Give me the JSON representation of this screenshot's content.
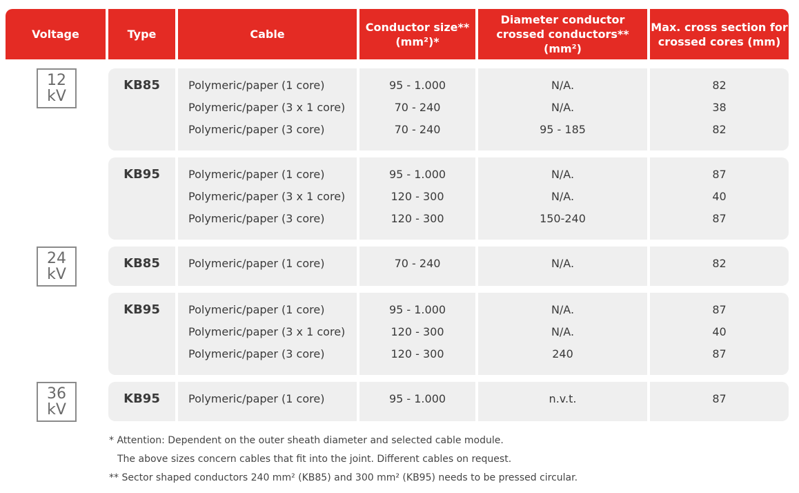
{
  "table": {
    "headers": [
      [
        "Voltage"
      ],
      [
        "Type"
      ],
      [
        "Cable"
      ],
      [
        "Conductor size**",
        "(mm²)*"
      ],
      [
        "Diameter conductor",
        "crossed conductors** (mm²)"
      ],
      [
        "Max. cross section for",
        "crossed cores  (mm)"
      ]
    ],
    "groups": [
      {
        "voltage": [
          "12",
          "kV"
        ],
        "blocks": [
          {
            "type": "KB85",
            "rows": [
              [
                "Polymeric/paper (1 core)",
                "95 - 1.000",
                "N/A.",
                "82"
              ],
              [
                "Polymeric/paper (3 x 1 core)",
                "70 - 240",
                "N/A.",
                "38"
              ],
              [
                "Polymeric/paper (3 core)",
                "70 - 240",
                "95 - 185",
                "82"
              ]
            ]
          },
          {
            "type": "KB95",
            "rows": [
              [
                "Polymeric/paper (1 core)",
                "95 - 1.000",
                "N/A.",
                "87"
              ],
              [
                "Polymeric/paper (3 x 1 core)",
                "120 - 300",
                "N/A.",
                "40"
              ],
              [
                "Polymeric/paper (3 core)",
                "120 - 300",
                "150-240",
                "87"
              ]
            ]
          }
        ]
      },
      {
        "voltage": [
          "24",
          "kV"
        ],
        "blocks": [
          {
            "type": "KB85",
            "rows": [
              [
                "Polymeric/paper (1 core)",
                "70 - 240",
                "N/A.",
                "82"
              ]
            ]
          },
          {
            "type": "KB95",
            "rows": [
              [
                "Polymeric/paper (1 core)",
                "95 - 1.000",
                "N/A.",
                "87"
              ],
              [
                "Polymeric/paper (3 x 1 core)",
                "120 - 300",
                "N/A.",
                "40"
              ],
              [
                "Polymeric/paper (3 core)",
                "120 - 300",
                "240",
                "87"
              ]
            ]
          }
        ]
      },
      {
        "voltage": [
          "36",
          "kV"
        ],
        "blocks": [
          {
            "type": "KB95",
            "rows": [
              [
                "Polymeric/paper (1 core)",
                "95 - 1.000",
                "n.v.t.",
                "87"
              ]
            ]
          }
        ]
      }
    ],
    "footnotes": [
      "* Attention: Dependent on the outer sheath diameter and selected cable module.",
      "The above sizes concern cables that fit into the joint. Different cables on request.",
      "** Sector shaped conductors 240 mm² (KB85) and 300 mm² (KB95) needs to be pressed circular."
    ]
  }
}
